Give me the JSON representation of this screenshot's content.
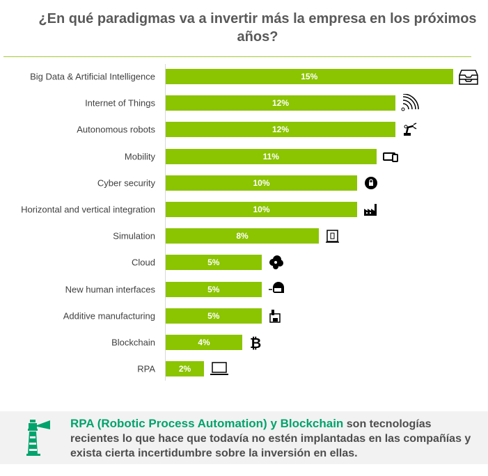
{
  "chart_data": {
    "type": "bar",
    "orientation": "horizontal",
    "title": "¿En qué paradigmas va a invertir más  la empresa en los próximos años?",
    "categories": [
      "Big Data & Artificial Intelligence",
      "Internet of Things",
      "Autonomous robots",
      "Mobility",
      "Cyber security",
      "Horizontal  and vertical integration",
      "Simulation",
      "Cloud",
      "New human interfaces",
      "Additive manufacturing",
      "Blockchain",
      "RPA"
    ],
    "values": [
      15,
      12,
      12,
      11,
      10,
      10,
      8,
      5,
      5,
      5,
      4,
      2
    ],
    "labels": [
      "15%",
      "12%",
      "12%",
      "11%",
      "10%",
      "10%",
      "8%",
      "5%",
      "5%",
      "5%",
      "4%",
      "2%"
    ],
    "icons": [
      "inbox-tray-icon",
      "wifi-signal-icon",
      "robot-arm-icon",
      "devices-icon",
      "lock-icon",
      "factory-icon",
      "simulation-screen-icon",
      "cloud-icon",
      "vr-headset-icon",
      "3d-printer-icon",
      "bitcoin-icon",
      "laptop-icon"
    ],
    "bar_color": "#8bc400",
    "xlim": [
      0,
      15
    ],
    "grid": false
  },
  "note": {
    "highlight1": "RPA (Robotic Process Automation) y ",
    "highlight2": "Blockchain",
    "text": " son tecnologías recientes lo que hace que todavía no estén implantadas en las compañías y exista cierta incertidumbre sobre la inversión en ellas.",
    "highlight_color": "#00a36c"
  }
}
